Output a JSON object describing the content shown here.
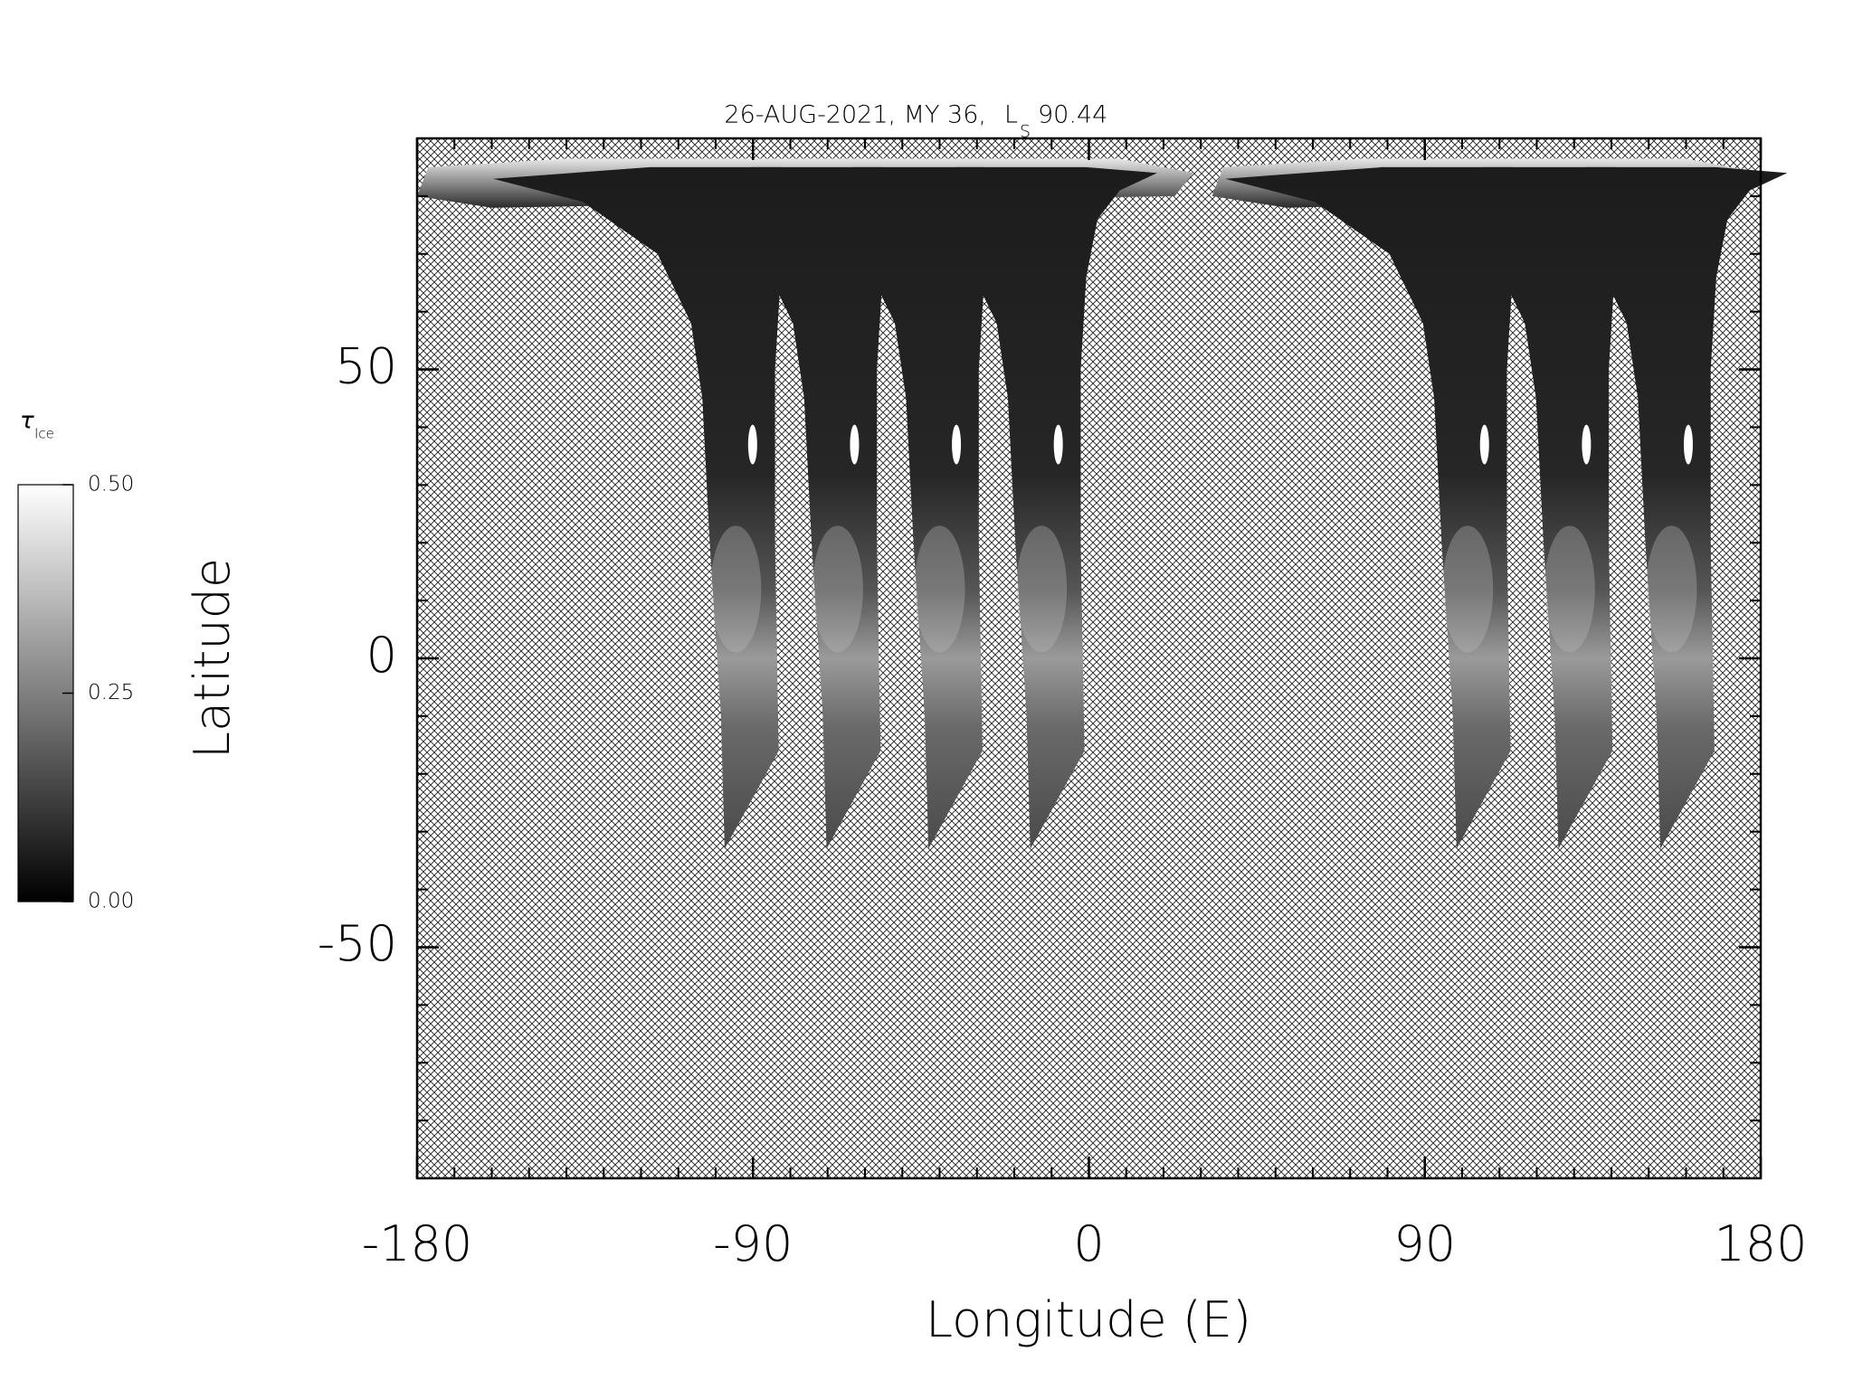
{
  "chart_data": {
    "type": "map",
    "title": {
      "text": "26-AUG-2021, MY 36,",
      "ls_symbol": "L",
      "ls_subscript": "S",
      "ls_value": "90.44"
    },
    "x_label": "Longitude (E)",
    "y_label": "Latitude",
    "xlim": [
      -180,
      180
    ],
    "xticks": [
      -180,
      -90,
      0,
      90,
      180
    ],
    "ylim": [
      -90,
      90
    ],
    "yticks": [
      -50,
      0,
      50
    ],
    "minor_tick_interval": 10,
    "colorbar": {
      "label": "τ",
      "label_subscript": "Ice",
      "lim": [
        0,
        0.5
      ],
      "ticks": [
        {
          "value": 0,
          "label": "0.00"
        },
        {
          "value": 0.25,
          "label": "0.25"
        },
        {
          "value": 0.5,
          "label": "0.50"
        }
      ]
    }
  }
}
